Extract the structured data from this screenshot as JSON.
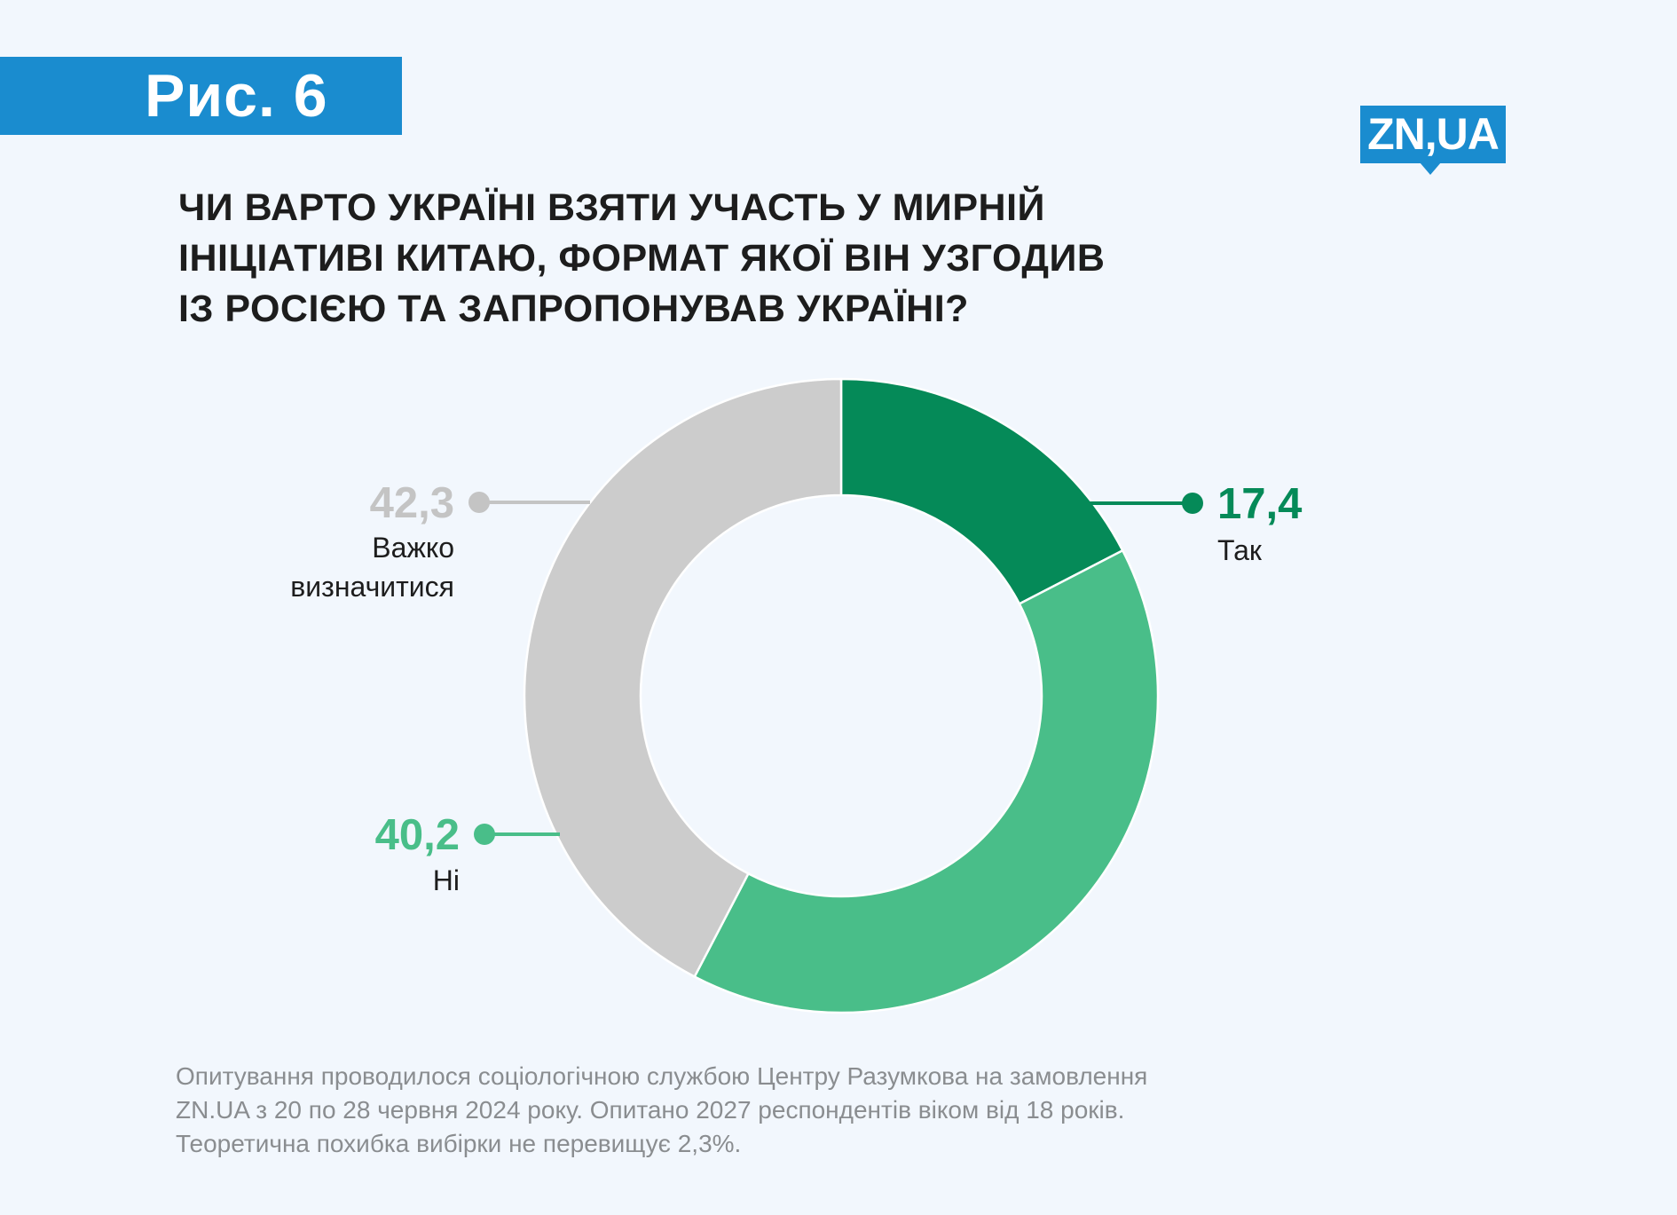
{
  "figure_label": "Рис. 6",
  "logo": {
    "text": "ZN,UA"
  },
  "question": {
    "lines": [
      "ЧИ ВАРТО УКРАЇНІ ВЗЯТИ УЧАСТЬ У МИРНІЙ",
      "ІНІЦІАТИВІ КИТАЮ, ФОРМАТ ЯКОЇ ВІН УЗГОДИВ",
      "ІЗ РОСІЄЮ ТА ЗАПРОПОНУВАВ УКРАЇНІ?"
    ]
  },
  "chart_data": {
    "type": "pie",
    "donut": true,
    "title": "ЧИ ВАРТО УКРАЇНІ ВЗЯТИ УЧАСТЬ У МИРНІЙ ІНІЦІАТИВІ КИТАЮ, ФОРМАТ ЯКОЇ ВІН УЗГОДИВ ІЗ РОСІЄЮ ТА ЗАПРОПОНУВАВ УКРАЇНІ?",
    "slices": [
      {
        "label_lines": [
          "Так"
        ],
        "value": 17.4,
        "value_text": "17,4",
        "color": "#058a58",
        "label_color": "#058a58",
        "side": "right"
      },
      {
        "label_lines": [
          "Ні"
        ],
        "value": 40.2,
        "value_text": "40,2",
        "color": "#49be89",
        "label_color": "#49be89",
        "side": "left"
      },
      {
        "label_lines": [
          "Важко",
          "визначитися"
        ],
        "value": 42.3,
        "value_text": "42,3",
        "color": "#cccccc",
        "label_color": "#c4c4c4",
        "side": "left"
      }
    ],
    "legend": "none"
  },
  "footnote": {
    "lines": [
      "Опитування проводилося  соціологічною службою Центру Разумкова на замовлення",
      "ZN.UA з 20 по 28 червня 2024 року. Опитано 2027 респондентів віком від 18 років.",
      "Теоретична похибка вибірки не перевищує 2,3%."
    ]
  }
}
